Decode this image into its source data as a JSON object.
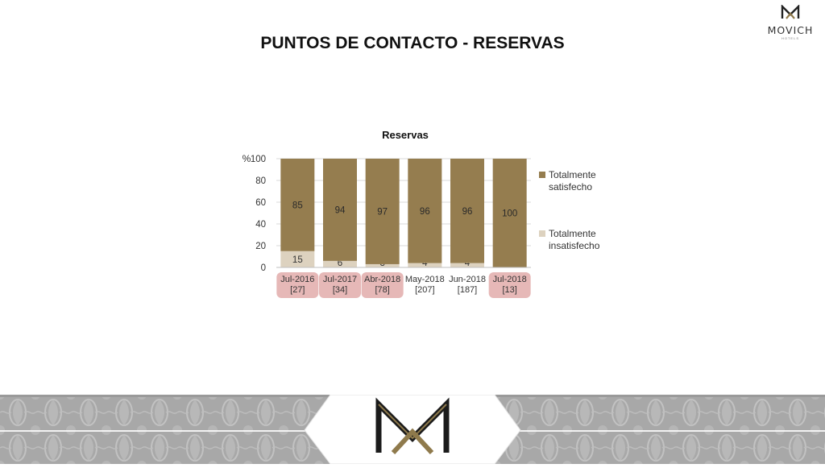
{
  "brand": {
    "name": "MOVICH",
    "sub": "HOTELS",
    "colors": {
      "gold": "#8f7a4c",
      "dark": "#222222",
      "footer_bg": "#a9a9a9"
    }
  },
  "slide": {
    "title": "PUNTOS DE CONTACTO - RESERVAS"
  },
  "chart_data": {
    "type": "bar",
    "stacked": true,
    "title": "Reservas",
    "ylabel": "%",
    "ylim": [
      0,
      100
    ],
    "yticks": [
      "0",
      "20",
      "40",
      "60",
      "80",
      "100"
    ],
    "grid": true,
    "legend_position": "right",
    "categories": [
      "Jul-2016",
      "Jul-2017",
      "Abr-2018",
      "May-2018",
      "Jun-2018",
      "Jul-2018"
    ],
    "category_counts": [
      "[27]",
      "[34]",
      "[78]",
      "[207]",
      "[187]",
      "[13]"
    ],
    "highlighted_categories": [
      0,
      1,
      2,
      5
    ],
    "highlight_color": "#e6b8b7",
    "series": [
      {
        "name": "Totalmente insatisfecho",
        "values": [
          15,
          6,
          3,
          4,
          4,
          0
        ],
        "labels": [
          "15",
          "6",
          "3",
          "4",
          "4",
          ""
        ],
        "color": "#ddd2bf"
      },
      {
        "name": "Totalmente satisfecho",
        "values": [
          85,
          94,
          97,
          96,
          96,
          100
        ],
        "labels": [
          "85",
          "94",
          "97",
          "96",
          "96",
          "100"
        ],
        "color": "#957d4f"
      }
    ],
    "legend_items": [
      {
        "line1": "Totalmente",
        "line2": "satisfecho",
        "color": "#957d4f"
      },
      {
        "line1": "Totalmente",
        "line2": "insatisfecho",
        "color": "#ddd2bf"
      }
    ]
  }
}
